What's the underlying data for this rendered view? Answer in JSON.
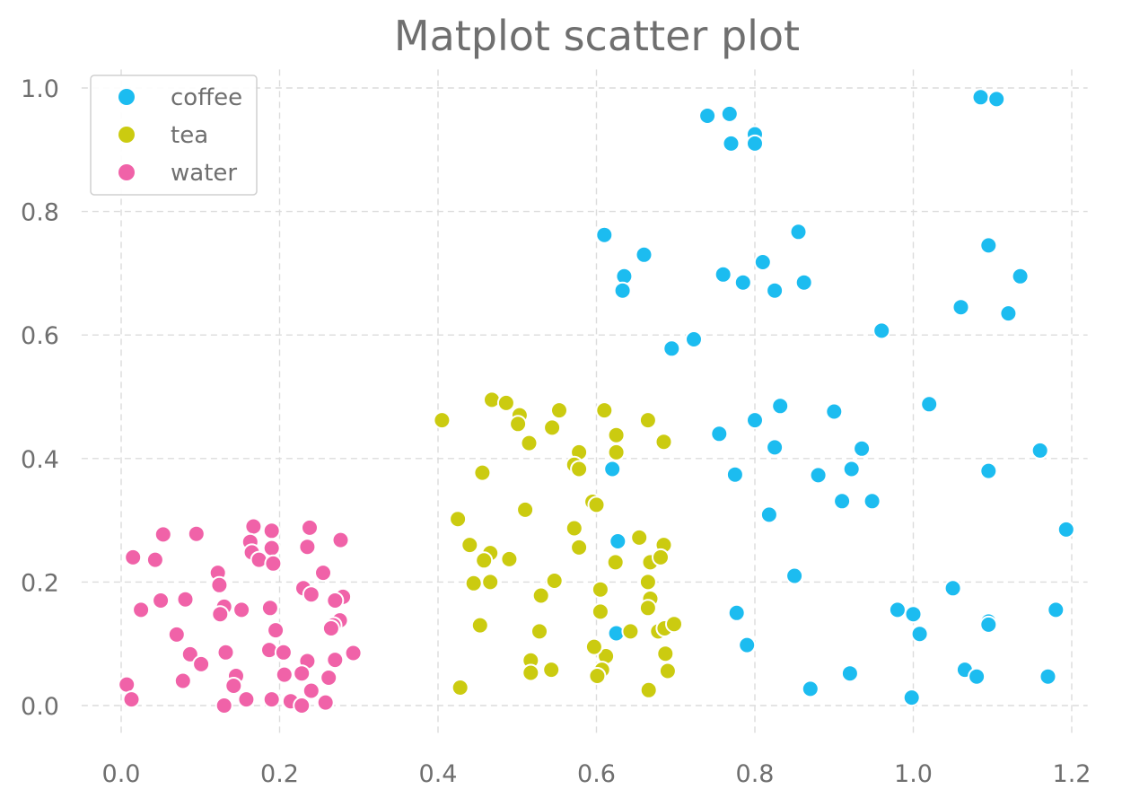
{
  "chart_data": {
    "type": "scatter",
    "title": "Matplot scatter plot",
    "xlabel": "",
    "ylabel": "",
    "xlim": [
      -0.05,
      1.22
    ],
    "ylim": [
      -0.05,
      1.03
    ],
    "x_ticks": [
      "0.0",
      "0.2",
      "0.4",
      "0.6",
      "0.8",
      "1.0",
      "1.2"
    ],
    "y_ticks": [
      "0.0",
      "0.2",
      "0.4",
      "0.6",
      "0.8",
      "1.0"
    ],
    "grid": true,
    "legend_position": "top-left",
    "series": [
      {
        "name": "coffee",
        "color": "#1cbcf0",
        "points": [
          [
            0.74,
            0.955
          ],
          [
            0.768,
            0.958
          ],
          [
            0.8,
            0.925
          ],
          [
            0.77,
            0.91
          ],
          [
            0.8,
            0.91
          ],
          [
            1.085,
            0.985
          ],
          [
            1.105,
            0.982
          ],
          [
            0.61,
            0.762
          ],
          [
            0.66,
            0.73
          ],
          [
            0.635,
            0.695
          ],
          [
            0.633,
            0.672
          ],
          [
            0.855,
            0.767
          ],
          [
            0.76,
            0.698
          ],
          [
            0.81,
            0.718
          ],
          [
            0.785,
            0.685
          ],
          [
            0.825,
            0.672
          ],
          [
            0.862,
            0.685
          ],
          [
            1.095,
            0.745
          ],
          [
            1.135,
            0.695
          ],
          [
            1.06,
            0.645
          ],
          [
            1.12,
            0.635
          ],
          [
            0.96,
            0.607
          ],
          [
            0.723,
            0.593
          ],
          [
            0.695,
            0.578
          ],
          [
            1.02,
            0.488
          ],
          [
            0.832,
            0.485
          ],
          [
            0.9,
            0.476
          ],
          [
            0.8,
            0.462
          ],
          [
            0.755,
            0.44
          ],
          [
            0.825,
            0.418
          ],
          [
            0.935,
            0.416
          ],
          [
            1.16,
            0.413
          ],
          [
            0.62,
            0.383
          ],
          [
            0.922,
            0.383
          ],
          [
            1.095,
            0.38
          ],
          [
            0.775,
            0.374
          ],
          [
            0.88,
            0.373
          ],
          [
            0.91,
            0.331
          ],
          [
            0.948,
            0.331
          ],
          [
            0.818,
            0.309
          ],
          [
            1.193,
            0.285
          ],
          [
            0.627,
            0.266
          ],
          [
            0.85,
            0.21
          ],
          [
            1.05,
            0.19
          ],
          [
            0.98,
            0.155
          ],
          [
            1.18,
            0.155
          ],
          [
            0.777,
            0.15
          ],
          [
            1.0,
            0.148
          ],
          [
            1.095,
            0.136
          ],
          [
            1.095,
            0.131
          ],
          [
            0.625,
            0.117
          ],
          [
            1.008,
            0.116
          ],
          [
            0.79,
            0.098
          ],
          [
            1.065,
            0.058
          ],
          [
            0.92,
            0.052
          ],
          [
            1.08,
            0.047
          ],
          [
            1.17,
            0.047
          ],
          [
            0.87,
            0.027
          ],
          [
            0.998,
            0.013
          ]
        ]
      },
      {
        "name": "tea",
        "color": "#cbcb10",
        "points": [
          [
            0.468,
            0.495
          ],
          [
            0.486,
            0.49
          ],
          [
            0.405,
            0.462
          ],
          [
            0.503,
            0.47
          ],
          [
            0.501,
            0.456
          ],
          [
            0.553,
            0.478
          ],
          [
            0.61,
            0.478
          ],
          [
            0.544,
            0.45
          ],
          [
            0.665,
            0.462
          ],
          [
            0.625,
            0.438
          ],
          [
            0.515,
            0.425
          ],
          [
            0.685,
            0.427
          ],
          [
            0.578,
            0.41
          ],
          [
            0.625,
            0.41
          ],
          [
            0.572,
            0.39
          ],
          [
            0.578,
            0.383
          ],
          [
            0.456,
            0.377
          ],
          [
            0.595,
            0.33
          ],
          [
            0.6,
            0.325
          ],
          [
            0.51,
            0.317
          ],
          [
            0.425,
            0.302
          ],
          [
            0.572,
            0.287
          ],
          [
            0.654,
            0.272
          ],
          [
            0.44,
            0.26
          ],
          [
            0.578,
            0.256
          ],
          [
            0.685,
            0.26
          ],
          [
            0.466,
            0.247
          ],
          [
            0.458,
            0.235
          ],
          [
            0.49,
            0.237
          ],
          [
            0.624,
            0.232
          ],
          [
            0.668,
            0.232
          ],
          [
            0.681,
            0.24
          ],
          [
            0.547,
            0.202
          ],
          [
            0.445,
            0.198
          ],
          [
            0.466,
            0.2
          ],
          [
            0.665,
            0.2
          ],
          [
            0.605,
            0.188
          ],
          [
            0.53,
            0.178
          ],
          [
            0.668,
            0.173
          ],
          [
            0.665,
            0.158
          ],
          [
            0.605,
            0.152
          ],
          [
            0.453,
            0.13
          ],
          [
            0.528,
            0.12
          ],
          [
            0.643,
            0.12
          ],
          [
            0.678,
            0.12
          ],
          [
            0.686,
            0.125
          ],
          [
            0.698,
            0.132
          ],
          [
            0.612,
            0.08
          ],
          [
            0.597,
            0.095
          ],
          [
            0.687,
            0.084
          ],
          [
            0.517,
            0.073
          ],
          [
            0.517,
            0.053
          ],
          [
            0.543,
            0.058
          ],
          [
            0.607,
            0.058
          ],
          [
            0.601,
            0.048
          ],
          [
            0.69,
            0.056
          ],
          [
            0.428,
            0.029
          ],
          [
            0.666,
            0.025
          ]
        ]
      },
      {
        "name": "water",
        "color": "#f062a8",
        "points": [
          [
            0.167,
            0.29
          ],
          [
            0.19,
            0.283
          ],
          [
            0.238,
            0.288
          ],
          [
            0.053,
            0.277
          ],
          [
            0.095,
            0.278
          ],
          [
            0.163,
            0.265
          ],
          [
            0.277,
            0.268
          ],
          [
            0.19,
            0.255
          ],
          [
            0.235,
            0.257
          ],
          [
            0.165,
            0.248
          ],
          [
            0.174,
            0.236
          ],
          [
            0.015,
            0.24
          ],
          [
            0.043,
            0.236
          ],
          [
            0.192,
            0.23
          ],
          [
            0.122,
            0.215
          ],
          [
            0.255,
            0.215
          ],
          [
            0.124,
            0.195
          ],
          [
            0.23,
            0.19
          ],
          [
            0.24,
            0.18
          ],
          [
            0.05,
            0.17
          ],
          [
            0.081,
            0.172
          ],
          [
            0.28,
            0.176
          ],
          [
            0.27,
            0.17
          ],
          [
            0.13,
            0.16
          ],
          [
            0.152,
            0.155
          ],
          [
            0.188,
            0.158
          ],
          [
            0.025,
            0.155
          ],
          [
            0.125,
            0.148
          ],
          [
            0.276,
            0.138
          ],
          [
            0.268,
            0.13
          ],
          [
            0.265,
            0.125
          ],
          [
            0.195,
            0.122
          ],
          [
            0.07,
            0.115
          ],
          [
            0.187,
            0.09
          ],
          [
            0.205,
            0.086
          ],
          [
            0.087,
            0.083
          ],
          [
            0.132,
            0.086
          ],
          [
            0.293,
            0.085
          ],
          [
            0.27,
            0.074
          ],
          [
            0.235,
            0.072
          ],
          [
            0.101,
            0.067
          ],
          [
            0.206,
            0.05
          ],
          [
            0.145,
            0.048
          ],
          [
            0.228,
            0.052
          ],
          [
            0.262,
            0.045
          ],
          [
            0.078,
            0.04
          ],
          [
            0.007,
            0.034
          ],
          [
            0.142,
            0.032
          ],
          [
            0.24,
            0.024
          ],
          [
            0.013,
            0.01
          ],
          [
            0.158,
            0.01
          ],
          [
            0.19,
            0.01
          ],
          [
            0.214,
            0.007
          ],
          [
            0.258,
            0.005
          ],
          [
            0.13,
            0.0
          ],
          [
            0.228,
            0.0
          ]
        ]
      }
    ]
  }
}
